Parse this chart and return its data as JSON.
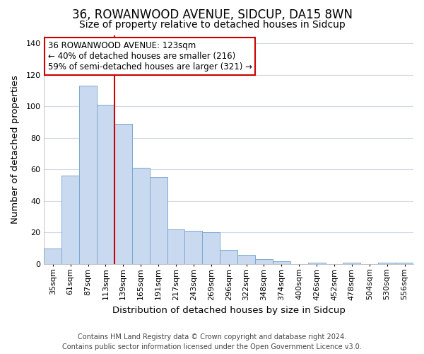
{
  "title": "36, ROWANWOOD AVENUE, SIDCUP, DA15 8WN",
  "subtitle": "Size of property relative to detached houses in Sidcup",
  "xlabel": "Distribution of detached houses by size in Sidcup",
  "ylabel": "Number of detached properties",
  "bar_labels": [
    "35sqm",
    "61sqm",
    "87sqm",
    "113sqm",
    "139sqm",
    "165sqm",
    "191sqm",
    "217sqm",
    "243sqm",
    "269sqm",
    "296sqm",
    "322sqm",
    "348sqm",
    "374sqm",
    "400sqm",
    "426sqm",
    "452sqm",
    "478sqm",
    "504sqm",
    "530sqm",
    "556sqm"
  ],
  "bar_values": [
    10,
    56,
    113,
    101,
    89,
    61,
    55,
    22,
    21,
    20,
    9,
    6,
    3,
    2,
    0,
    1,
    0,
    1,
    0,
    1,
    1
  ],
  "bar_color": "#c9d9ef",
  "bar_edge_color": "#7da8d0",
  "ylim": [
    0,
    145
  ],
  "yticks": [
    0,
    20,
    40,
    60,
    80,
    100,
    120,
    140
  ],
  "vline_x_index": 3,
  "vline_color": "#cc0000",
  "annotation_text": "36 ROWANWOOD AVENUE: 123sqm\n← 40% of detached houses are smaller (216)\n59% of semi-detached houses are larger (321) →",
  "annotation_box_facecolor": "#ffffff",
  "annotation_box_edgecolor": "#cc0000",
  "footer_line1": "Contains HM Land Registry data © Crown copyright and database right 2024.",
  "footer_line2": "Contains public sector information licensed under the Open Government Licence v3.0.",
  "fig_facecolor": "#ffffff",
  "plot_facecolor": "#ffffff",
  "grid_color": "#d0d8e8",
  "title_fontsize": 12,
  "subtitle_fontsize": 10,
  "axis_label_fontsize": 9.5,
  "tick_fontsize": 8,
  "annotation_fontsize": 8.5,
  "footer_fontsize": 7
}
